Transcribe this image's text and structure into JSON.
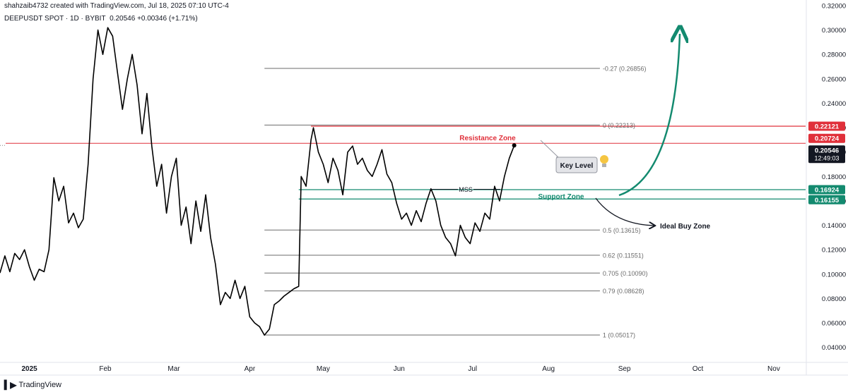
{
  "header": {
    "attribution": "shahzaib4732 created with TradingView.com, Jul 18, 2025 07:10 UTC-4",
    "symbol": "DEEPUSDT SPOT · 1D · BYBIT",
    "price": "0.20546",
    "change": "+0.00346 (+1.71%)"
  },
  "footer": {
    "brand": "TradingView",
    "logo_icon": "tradingview-logo-icon"
  },
  "colors": {
    "price_line": "#000000",
    "fib_line": "#6b6b6b",
    "resistance": "#e0303a",
    "support": "#138a6f",
    "arrow_green": "#138a6f",
    "grid": "#f0f3fa",
    "axis_text": "#131722"
  },
  "annotations": {
    "resistance_zone": "Resistance Zone",
    "support_zone": "Support Zone",
    "mss": "MSS",
    "key_level": "Key Level",
    "ideal_buy_zone": "Ideal Buy Zone",
    "bulb_icon": "lightbulb-icon"
  },
  "price_tags": {
    "resistance_top": "0.22121",
    "resistance_bottom": "0.20724",
    "current_price": "0.20546",
    "countdown": "12:49:03",
    "support_top": "0.16924",
    "support_bottom": "0.16155"
  },
  "chart_data": {
    "type": "line",
    "title": "DEEPUSDT SPOT · 1D · BYBIT",
    "ylim": [
      0.03,
      0.32
    ],
    "y_ticks": [
      0.04,
      0.06,
      0.08,
      0.1,
      0.12,
      0.14,
      0.16,
      0.18,
      0.2,
      0.22,
      0.24,
      0.26,
      0.28,
      0.3,
      0.32
    ],
    "y_tick_labels": [
      "0.04000",
      "0.06000",
      "0.08000",
      "0.10000",
      "0.12000",
      "0.14000",
      "0.16000",
      "0.18000",
      "0.20000",
      "0.22000",
      "0.24000",
      "0.26000",
      "0.28000",
      "0.30000",
      "0.32000"
    ],
    "x_ticks": [
      "2025-01-01",
      "2025-02-01",
      "2025-03-01",
      "2025-04-01",
      "2025-05-01",
      "2025-06-01",
      "2025-07-01",
      "2025-08-01",
      "2025-09-01",
      "2025-10-01",
      "2025-11-01"
    ],
    "x_tick_labels": [
      "2025",
      "Feb",
      "Mar",
      "Apr",
      "May",
      "Jun",
      "Jul",
      "Aug",
      "Sep",
      "Oct",
      "Nov"
    ],
    "xlim": [
      "2024-12-20",
      "2025-11-14"
    ],
    "series": [
      {
        "values": [
          [
            "2024-12-20",
            0.101
          ],
          [
            "2024-12-22",
            0.115
          ],
          [
            "2024-12-24",
            0.102
          ],
          [
            "2024-12-26",
            0.117
          ],
          [
            "2024-12-28",
            0.112
          ],
          [
            "2024-12-30",
            0.12
          ],
          [
            "2025-01-01",
            0.106
          ],
          [
            "2025-01-03",
            0.095
          ],
          [
            "2025-01-05",
            0.104
          ],
          [
            "2025-01-07",
            0.102
          ],
          [
            "2025-01-09",
            0.12
          ],
          [
            "2025-01-11",
            0.179
          ],
          [
            "2025-01-13",
            0.16
          ],
          [
            "2025-01-15",
            0.172
          ],
          [
            "2025-01-17",
            0.142
          ],
          [
            "2025-01-19",
            0.15
          ],
          [
            "2025-01-21",
            0.138
          ],
          [
            "2025-01-23",
            0.145
          ],
          [
            "2025-01-25",
            0.19
          ],
          [
            "2025-01-27",
            0.26
          ],
          [
            "2025-01-29",
            0.3
          ],
          [
            "2025-01-31",
            0.28
          ],
          [
            "2025-02-02",
            0.302
          ],
          [
            "2025-02-04",
            0.295
          ],
          [
            "2025-02-06",
            0.265
          ],
          [
            "2025-02-08",
            0.235
          ],
          [
            "2025-02-10",
            0.26
          ],
          [
            "2025-02-12",
            0.28
          ],
          [
            "2025-02-14",
            0.255
          ],
          [
            "2025-02-16",
            0.215
          ],
          [
            "2025-02-18",
            0.248
          ],
          [
            "2025-02-20",
            0.205
          ],
          [
            "2025-02-22",
            0.172
          ],
          [
            "2025-02-24",
            0.19
          ],
          [
            "2025-02-26",
            0.15
          ],
          [
            "2025-02-28",
            0.18
          ],
          [
            "2025-03-02",
            0.195
          ],
          [
            "2025-03-04",
            0.14
          ],
          [
            "2025-03-06",
            0.155
          ],
          [
            "2025-03-08",
            0.125
          ],
          [
            "2025-03-10",
            0.16
          ],
          [
            "2025-03-12",
            0.135
          ],
          [
            "2025-03-14",
            0.165
          ],
          [
            "2025-03-16",
            0.13
          ],
          [
            "2025-03-18",
            0.108
          ],
          [
            "2025-03-20",
            0.075
          ],
          [
            "2025-03-22",
            0.085
          ],
          [
            "2025-03-24",
            0.08
          ],
          [
            "2025-03-26",
            0.095
          ],
          [
            "2025-03-28",
            0.08
          ],
          [
            "2025-03-30",
            0.09
          ],
          [
            "2025-04-01",
            0.065
          ],
          [
            "2025-04-03",
            0.06
          ],
          [
            "2025-04-05",
            0.057
          ],
          [
            "2025-04-07",
            0.05
          ],
          [
            "2025-04-09",
            0.055
          ],
          [
            "2025-04-11",
            0.075
          ],
          [
            "2025-04-13",
            0.078
          ],
          [
            "2025-04-15",
            0.082
          ],
          [
            "2025-04-17",
            0.085
          ],
          [
            "2025-04-19",
            0.088
          ],
          [
            "2025-04-21",
            0.09
          ],
          [
            "2025-04-22",
            0.18
          ],
          [
            "2025-04-24",
            0.172
          ],
          [
            "2025-04-26",
            0.21
          ],
          [
            "2025-04-27",
            0.22
          ],
          [
            "2025-04-29",
            0.2
          ],
          [
            "2025-05-01",
            0.19
          ],
          [
            "2025-05-03",
            0.175
          ],
          [
            "2025-05-05",
            0.195
          ],
          [
            "2025-05-07",
            0.185
          ],
          [
            "2025-05-09",
            0.165
          ],
          [
            "2025-05-11",
            0.2
          ],
          [
            "2025-05-13",
            0.205
          ],
          [
            "2025-05-15",
            0.19
          ],
          [
            "2025-05-17",
            0.195
          ],
          [
            "2025-05-19",
            0.185
          ],
          [
            "2025-05-21",
            0.18
          ],
          [
            "2025-05-23",
            0.19
          ],
          [
            "2025-05-25",
            0.202
          ],
          [
            "2025-05-27",
            0.182
          ],
          [
            "2025-05-29",
            0.175
          ],
          [
            "2025-05-31",
            0.158
          ],
          [
            "2025-06-02",
            0.145
          ],
          [
            "2025-06-04",
            0.15
          ],
          [
            "2025-06-06",
            0.14
          ],
          [
            "2025-06-08",
            0.152
          ],
          [
            "2025-06-10",
            0.143
          ],
          [
            "2025-06-12",
            0.158
          ],
          [
            "2025-06-14",
            0.17
          ],
          [
            "2025-06-16",
            0.16
          ],
          [
            "2025-06-18",
            0.14
          ],
          [
            "2025-06-20",
            0.13
          ],
          [
            "2025-06-22",
            0.125
          ],
          [
            "2025-06-24",
            0.115
          ],
          [
            "2025-06-26",
            0.14
          ],
          [
            "2025-06-28",
            0.13
          ],
          [
            "2025-06-30",
            0.125
          ],
          [
            "2025-07-02",
            0.142
          ],
          [
            "2025-07-04",
            0.135
          ],
          [
            "2025-07-06",
            0.15
          ],
          [
            "2025-07-08",
            0.145
          ],
          [
            "2025-07-10",
            0.172
          ],
          [
            "2025-07-12",
            0.16
          ],
          [
            "2025-07-14",
            0.18
          ],
          [
            "2025-07-16",
            0.195
          ],
          [
            "2025-07-18",
            0.20546
          ]
        ]
      }
    ],
    "fib_levels": [
      {
        "ratio": "-0.27",
        "value": 0.26856,
        "label": "-0.27 (0.26856)"
      },
      {
        "ratio": "0",
        "value": 0.22213,
        "label": "0 (0.22213)"
      },
      {
        "ratio": "0.5",
        "value": 0.13615,
        "label": "0.5 (0.13615)"
      },
      {
        "ratio": "0.62",
        "value": 0.11551,
        "label": "0.62 (0.11551)"
      },
      {
        "ratio": "0.705",
        "value": 0.1009,
        "label": "0.705 (0.10090)"
      },
      {
        "ratio": "0.79",
        "value": 0.08628,
        "label": "0.79 (0.08628)"
      },
      {
        "ratio": "1",
        "value": 0.05017,
        "label": "1 (0.05017)"
      }
    ],
    "fib_start": "2025-04-07",
    "fib_end": "2025-08-22",
    "resistance_zone": [
      0.20724,
      0.22121
    ],
    "support_zone": [
      0.16155,
      0.16924
    ],
    "grid": false
  }
}
